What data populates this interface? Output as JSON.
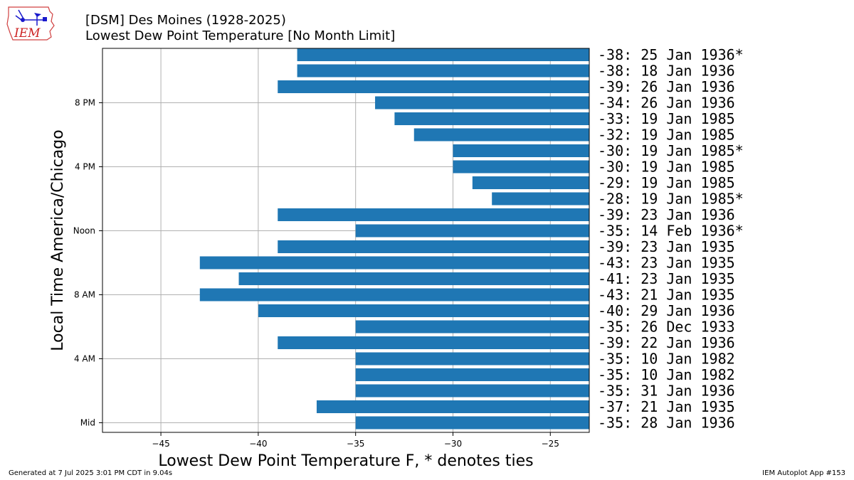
{
  "header": {
    "title": "[DSM] Des Moines (1928-2025)",
    "subtitle": "Lowest Dew Point Temperature [No Month Limit]"
  },
  "logo": {
    "text": "IEM"
  },
  "footer": {
    "left": "Generated at 7 Jul 2025 3:01 PM CDT in 9.04s",
    "right": "IEM Autoplot App #153"
  },
  "chart_data": {
    "type": "bar",
    "orientation": "horizontal",
    "xlabel": "Lowest Dew Point Temperature F, * denotes ties",
    "ylabel": "Local Time America/Chicago",
    "xlim": [
      -48,
      -23
    ],
    "xticks": [
      -45,
      -40,
      -35,
      -30,
      -25
    ],
    "xtick_labels": [
      "−45",
      "−40",
      "−35",
      "−30",
      "−25"
    ],
    "ytick_hours": [
      0,
      4,
      8,
      12,
      16,
      20
    ],
    "ytick_labels": [
      "Mid",
      "4 AM",
      "8 AM",
      "Noon",
      "4 PM",
      "8 PM"
    ],
    "grid": true,
    "bar_color": "#1f77b4",
    "hours": [
      0,
      1,
      2,
      3,
      4,
      5,
      6,
      7,
      8,
      9,
      10,
      11,
      12,
      13,
      14,
      15,
      16,
      17,
      18,
      19,
      20,
      21,
      22,
      23
    ],
    "values": [
      -35,
      -37,
      -35,
      -35,
      -35,
      -39,
      -35,
      -40,
      -43,
      -41,
      -43,
      -39,
      -35,
      -39,
      -28,
      -29,
      -30,
      -30,
      -32,
      -33,
      -34,
      -39,
      -38,
      -38
    ],
    "labels": [
      "-35: 28 Jan 1936",
      "-37: 21 Jan 1935",
      "-35: 31 Jan 1936",
      "-35: 10 Jan 1982",
      "-35: 10 Jan 1982",
      "-39: 22 Jan 1936",
      "-35: 26 Dec 1933",
      "-40: 29 Jan 1936",
      "-43: 21 Jan 1935",
      "-41: 23 Jan 1935",
      "-43: 23 Jan 1935",
      "-39: 23 Jan 1935",
      "-35: 14 Feb 1936*",
      "-39: 23 Jan 1936",
      "-28: 19 Jan 1985*",
      "-29: 19 Jan 1985",
      "-30: 19 Jan 1985",
      "-30: 19 Jan 1985*",
      "-32: 19 Jan 1985",
      "-33: 19 Jan 1985",
      "-34: 26 Jan 1936",
      "-39: 26 Jan 1936",
      "-38: 18 Jan 1936",
      "-38: 25 Jan 1936*"
    ]
  }
}
